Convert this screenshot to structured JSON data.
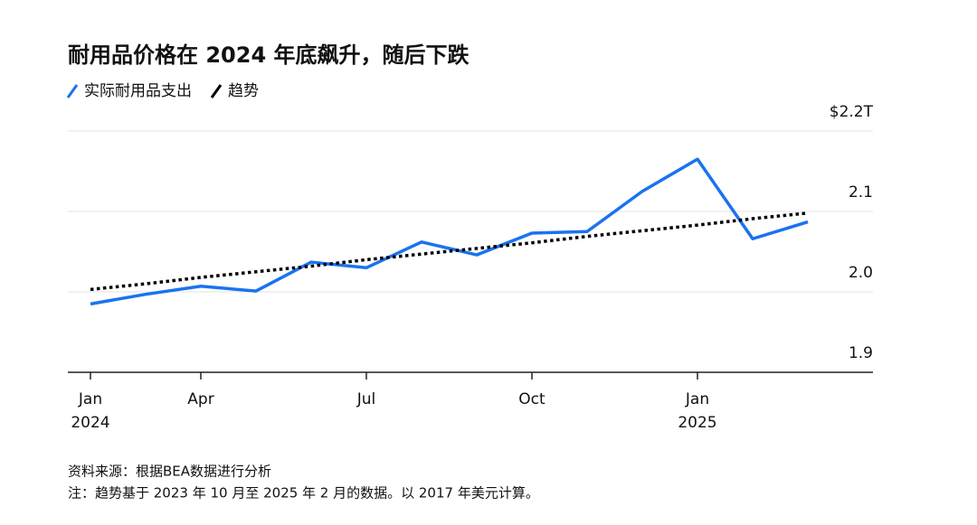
{
  "chart_data": {
    "type": "line",
    "title": "耐用品价格在 2024 年底飙升，随后下跌",
    "categories": [
      "Jan\n2024",
      null,
      "Apr",
      null,
      null,
      "Jul",
      null,
      null,
      "Oct",
      null,
      null,
      "Jan\n2025",
      null,
      null
    ],
    "series": [
      {
        "name": "实际耐用品支出",
        "color": "#1a73f0",
        "dash": false,
        "values": [
          1.985,
          1.997,
          2.007,
          2.001,
          2.037,
          2.03,
          2.062,
          2.046,
          2.073,
          2.075,
          2.125,
          2.165,
          2.066,
          2.087
        ]
      },
      {
        "name": "趋势",
        "color": "#000000",
        "dash": true,
        "values": [
          2.003,
          2.01,
          2.018,
          2.025,
          2.032,
          2.04,
          2.047,
          2.054,
          2.061,
          2.069,
          2.076,
          2.083,
          2.091,
          2.098
        ]
      }
    ],
    "ylim": [
      1.9,
      2.2
    ],
    "yticks": [
      1.9,
      {
        "value": 2.0,
        "label": "2.0"
      },
      2.1,
      {
        "value": 2.2,
        "label": "$2.2T"
      }
    ],
    "grid": true,
    "source": "资料来源：根据BEA数据进行分析",
    "note": "注：趋势基于 2023 年 10 月至 2025 年 2 月的数据。以 2017 年美元计算。"
  }
}
